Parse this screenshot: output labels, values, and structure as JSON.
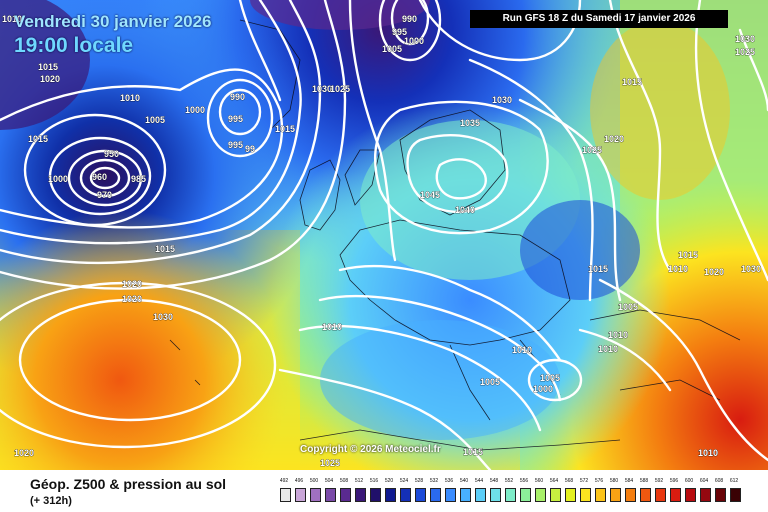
{
  "header": {
    "date_line": "Vendredi 30 janvier 2026",
    "time_line": "19:00 locale",
    "run": "Run GFS 18 Z du Samedi 17 janvier 2026"
  },
  "copyright": "Copyright © 2026 Meteociel.fr",
  "legend": {
    "title": "Géop. Z500 & pression au sol",
    "subtitle": "(+ 312h)",
    "scale_values": [
      "492",
      "496",
      "500",
      "504",
      "508",
      "512",
      "516",
      "520",
      "524",
      "528",
      "532",
      "536",
      "540",
      "544",
      "548",
      "552",
      "556",
      "560",
      "564",
      "568",
      "572",
      "576",
      "580",
      "584",
      "588",
      "592",
      "596",
      "600",
      "604",
      "608",
      "612"
    ],
    "scale_colors": [
      "#e8e8e8",
      "#c9a6d8",
      "#a070c0",
      "#7a4aa8",
      "#5a2a90",
      "#3a1878",
      "#20106a",
      "#101a90",
      "#1430b8",
      "#1c4ad8",
      "#2a6aee",
      "#3a8cff",
      "#48b0ff",
      "#5ccef8",
      "#6ee0ea",
      "#7eecc8",
      "#8cf09a",
      "#a8f06a",
      "#c8f040",
      "#e4f020",
      "#fce420",
      "#fcc41a",
      "#f8a214",
      "#f47e10",
      "#f05810",
      "#e83810",
      "#d81c10",
      "#b80c10",
      "#940810",
      "#6a0408",
      "#3a0204"
    ]
  },
  "isobar_labels": [
    "1010",
    "990",
    "995",
    "1000",
    "1005",
    "1030",
    "1025",
    "1015",
    "1020",
    "1000",
    "990",
    "995",
    "1005",
    "995",
    "99",
    "1010",
    "1030",
    "1025",
    "1035",
    "1040",
    "1045",
    "1030",
    "1015",
    "1020",
    "1025",
    "1015",
    "1015",
    "1020",
    "1020",
    "1005",
    "1030",
    "1010",
    "1010",
    "1010",
    "1005",
    "1005",
    "1000",
    "1010",
    "1015",
    "1015",
    "1010",
    "1020",
    "1030",
    "1020",
    "1025",
    "1015",
    "1010",
    "950",
    "960",
    "970",
    "985",
    "1000",
    "1015"
  ],
  "icons": [
    "weather-map",
    "isobar-lines",
    "color-scale"
  ]
}
